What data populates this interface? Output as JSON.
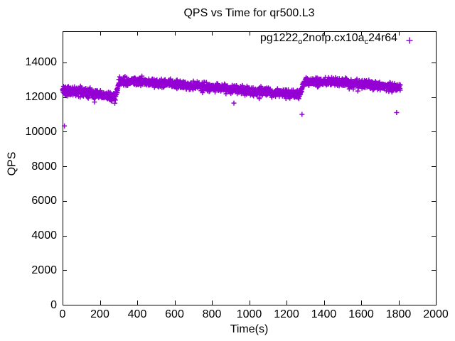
{
  "chart_data": {
    "type": "scatter",
    "title": "QPS vs Time for qr500.L3",
    "xlabel": "Time(s)",
    "ylabel": "QPS",
    "xlim": [
      0,
      2000
    ],
    "ylim": [
      0,
      15800
    ],
    "xticks": [
      0,
      200,
      400,
      600,
      800,
      1000,
      1200,
      1400,
      1600,
      1800,
      2000
    ],
    "yticks": [
      0,
      2000,
      4000,
      6000,
      8000,
      10000,
      12000,
      14000
    ],
    "grid": false,
    "background": "#ffffff",
    "axis_color": "#000000",
    "tick_style": "inward-mirrored",
    "legend": {
      "position": "top-right-inside",
      "label": "pg1222_o2nofp.cx10a_c24r64",
      "label_parts": [
        {
          "text": "pg1222"
        },
        {
          "text": "o",
          "subscript": true
        },
        {
          "text": "2nofp.cx10a"
        },
        {
          "text": "c",
          "subscript": true
        },
        {
          "text": "24r64"
        }
      ]
    },
    "series": [
      {
        "name": "pg1222_o2nofp.cx10a_c24r64",
        "color": "#9400d3",
        "marker": "plus",
        "marker_size_px": 7,
        "sampling": {
          "t_start": 0,
          "t_end": 1810,
          "interval_s": 1,
          "seed": 9
        },
        "trend_segments": [
          {
            "t0": 0,
            "t1": 90,
            "q0": 12350,
            "q1": 12350,
            "sd": 130,
            "dip_prob": 0,
            "dip_min": 0,
            "dip_max": 0
          },
          {
            "t0": 90,
            "t1": 230,
            "q0": 12280,
            "q1": 12150,
            "sd": 145,
            "dip_prob": 0.05,
            "dip_min": 100,
            "dip_max": 350
          },
          {
            "t0": 230,
            "t1": 285,
            "q0": 12100,
            "q1": 11990,
            "sd": 130,
            "dip_prob": 0.05,
            "dip_min": 100,
            "dip_max": 300
          },
          {
            "t0": 285,
            "t1": 300,
            "q0": 12000,
            "q1": 12800,
            "sd": 110,
            "dip_prob": 0,
            "dip_min": 0,
            "dip_max": 0
          },
          {
            "t0": 300,
            "t1": 430,
            "q0": 12890,
            "q1": 12890,
            "sd": 115,
            "dip_prob": 0.01,
            "dip_min": 100,
            "dip_max": 250
          },
          {
            "t0": 430,
            "t1": 1272,
            "q0": 12890,
            "q1": 12150,
            "sd": 112,
            "dip_prob": 0.03,
            "dip_min": 100,
            "dip_max": 350
          },
          {
            "t0": 1272,
            "t1": 1295,
            "q0": 12250,
            "q1": 12850,
            "sd": 105,
            "dip_prob": 0,
            "dip_min": 0,
            "dip_max": 0
          },
          {
            "t0": 1295,
            "t1": 1480,
            "q0": 12915,
            "q1": 12880,
            "sd": 115,
            "dip_prob": 0.015,
            "dip_min": 100,
            "dip_max": 250
          },
          {
            "t0": 1480,
            "t1": 1811,
            "q0": 12880,
            "q1": 12520,
            "sd": 108,
            "dip_prob": 0.02,
            "dip_min": 100,
            "dip_max": 300
          }
        ],
        "outliers": [
          [
            10,
            10330
          ],
          [
            918,
            11650
          ],
          [
            1283,
            11000
          ],
          [
            1790,
            11100
          ]
        ]
      }
    ]
  }
}
